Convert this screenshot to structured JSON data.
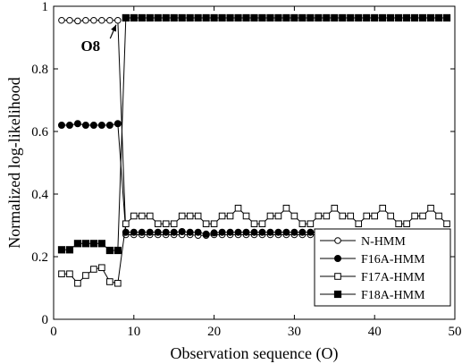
{
  "chart_data": {
    "type": "line",
    "xlabel": "Observation sequence (O)",
    "ylabel": "Normalized log-likelihood",
    "xlim": [
      0,
      50
    ],
    "ylim": [
      0,
      1
    ],
    "xticks": [
      0,
      10,
      20,
      30,
      40,
      50
    ],
    "yticks": [
      0,
      0.2,
      0.4,
      0.6,
      0.8,
      1
    ],
    "xtick_labels": [
      "0",
      "10",
      "20",
      "30",
      "40",
      "50"
    ],
    "ytick_labels": [
      "0",
      "0.2",
      "0.4",
      "0.6",
      "0.8",
      "1"
    ],
    "grid": false,
    "legend_position": "bottom-right",
    "x": [
      1,
      2,
      3,
      4,
      5,
      6,
      7,
      8,
      9,
      10,
      11,
      12,
      13,
      14,
      15,
      16,
      17,
      18,
      19,
      20,
      21,
      22,
      23,
      24,
      25,
      26,
      27,
      28,
      29,
      30,
      31,
      32,
      33,
      34,
      35,
      36,
      37,
      38,
      39,
      40,
      41,
      42,
      43,
      44,
      45,
      46,
      47,
      48,
      49
    ],
    "series": [
      {
        "name": "N-HMM",
        "marker": "open-circle",
        "values": [
          0.955,
          0.955,
          0.953,
          0.955,
          0.955,
          0.955,
          0.955,
          0.955,
          0.27,
          0.27,
          0.27,
          0.27,
          0.27,
          0.27,
          0.27,
          0.27,
          0.27,
          0.268,
          0.268,
          0.27,
          0.27,
          0.27,
          0.27,
          0.27,
          0.27,
          0.27,
          0.27,
          0.27,
          0.27,
          0.27,
          0.27,
          0.27,
          0.27,
          0.27,
          0.27,
          0.27,
          0.27,
          0.27,
          0.27,
          0.27,
          0.27,
          0.27,
          0.27,
          0.27,
          0.27,
          0.27,
          0.27,
          0.27,
          0.27
        ]
      },
      {
        "name": "F16A-HMM",
        "marker": "filled-circle",
        "values": [
          0.62,
          0.62,
          0.625,
          0.62,
          0.62,
          0.62,
          0.62,
          0.625,
          0.278,
          0.278,
          0.278,
          0.278,
          0.278,
          0.278,
          0.278,
          0.28,
          0.278,
          0.278,
          0.272,
          0.276,
          0.278,
          0.278,
          0.278,
          0.278,
          0.278,
          0.278,
          0.278,
          0.278,
          0.278,
          0.278,
          0.278,
          0.278,
          0.278,
          0.278,
          0.278,
          0.278,
          0.278,
          0.278,
          0.278,
          0.278,
          0.278,
          0.278,
          0.278,
          0.278,
          0.278,
          0.278,
          0.278,
          0.278,
          0.278
        ]
      },
      {
        "name": "F17A-HMM",
        "marker": "open-square",
        "values": [
          0.145,
          0.145,
          0.115,
          0.14,
          0.16,
          0.165,
          0.12,
          0.115,
          0.305,
          0.33,
          0.33,
          0.33,
          0.305,
          0.305,
          0.305,
          0.33,
          0.33,
          0.33,
          0.305,
          0.305,
          0.33,
          0.33,
          0.355,
          0.33,
          0.305,
          0.305,
          0.33,
          0.33,
          0.355,
          0.33,
          0.305,
          0.305,
          0.33,
          0.33,
          0.355,
          0.33,
          0.33,
          0.305,
          0.33,
          0.33,
          0.355,
          0.33,
          0.305,
          0.305,
          0.33,
          0.33,
          0.355,
          0.33,
          0.305
        ]
      },
      {
        "name": "F18A-HMM",
        "marker": "filled-square",
        "values": [
          0.222,
          0.222,
          0.242,
          0.242,
          0.242,
          0.242,
          0.22,
          0.22,
          0.963,
          0.963,
          0.963,
          0.963,
          0.963,
          0.963,
          0.963,
          0.963,
          0.963,
          0.963,
          0.963,
          0.963,
          0.963,
          0.963,
          0.963,
          0.963,
          0.963,
          0.963,
          0.963,
          0.963,
          0.963,
          0.963,
          0.963,
          0.963,
          0.963,
          0.963,
          0.963,
          0.963,
          0.963,
          0.963,
          0.963,
          0.963,
          0.963,
          0.963,
          0.963,
          0.963,
          0.963,
          0.963,
          0.963,
          0.963,
          0.963
        ]
      }
    ],
    "annotations": [
      {
        "text": "O8",
        "x": 8,
        "y": 0.955,
        "label_x": 4.6,
        "label_y": 0.857
      }
    ]
  }
}
